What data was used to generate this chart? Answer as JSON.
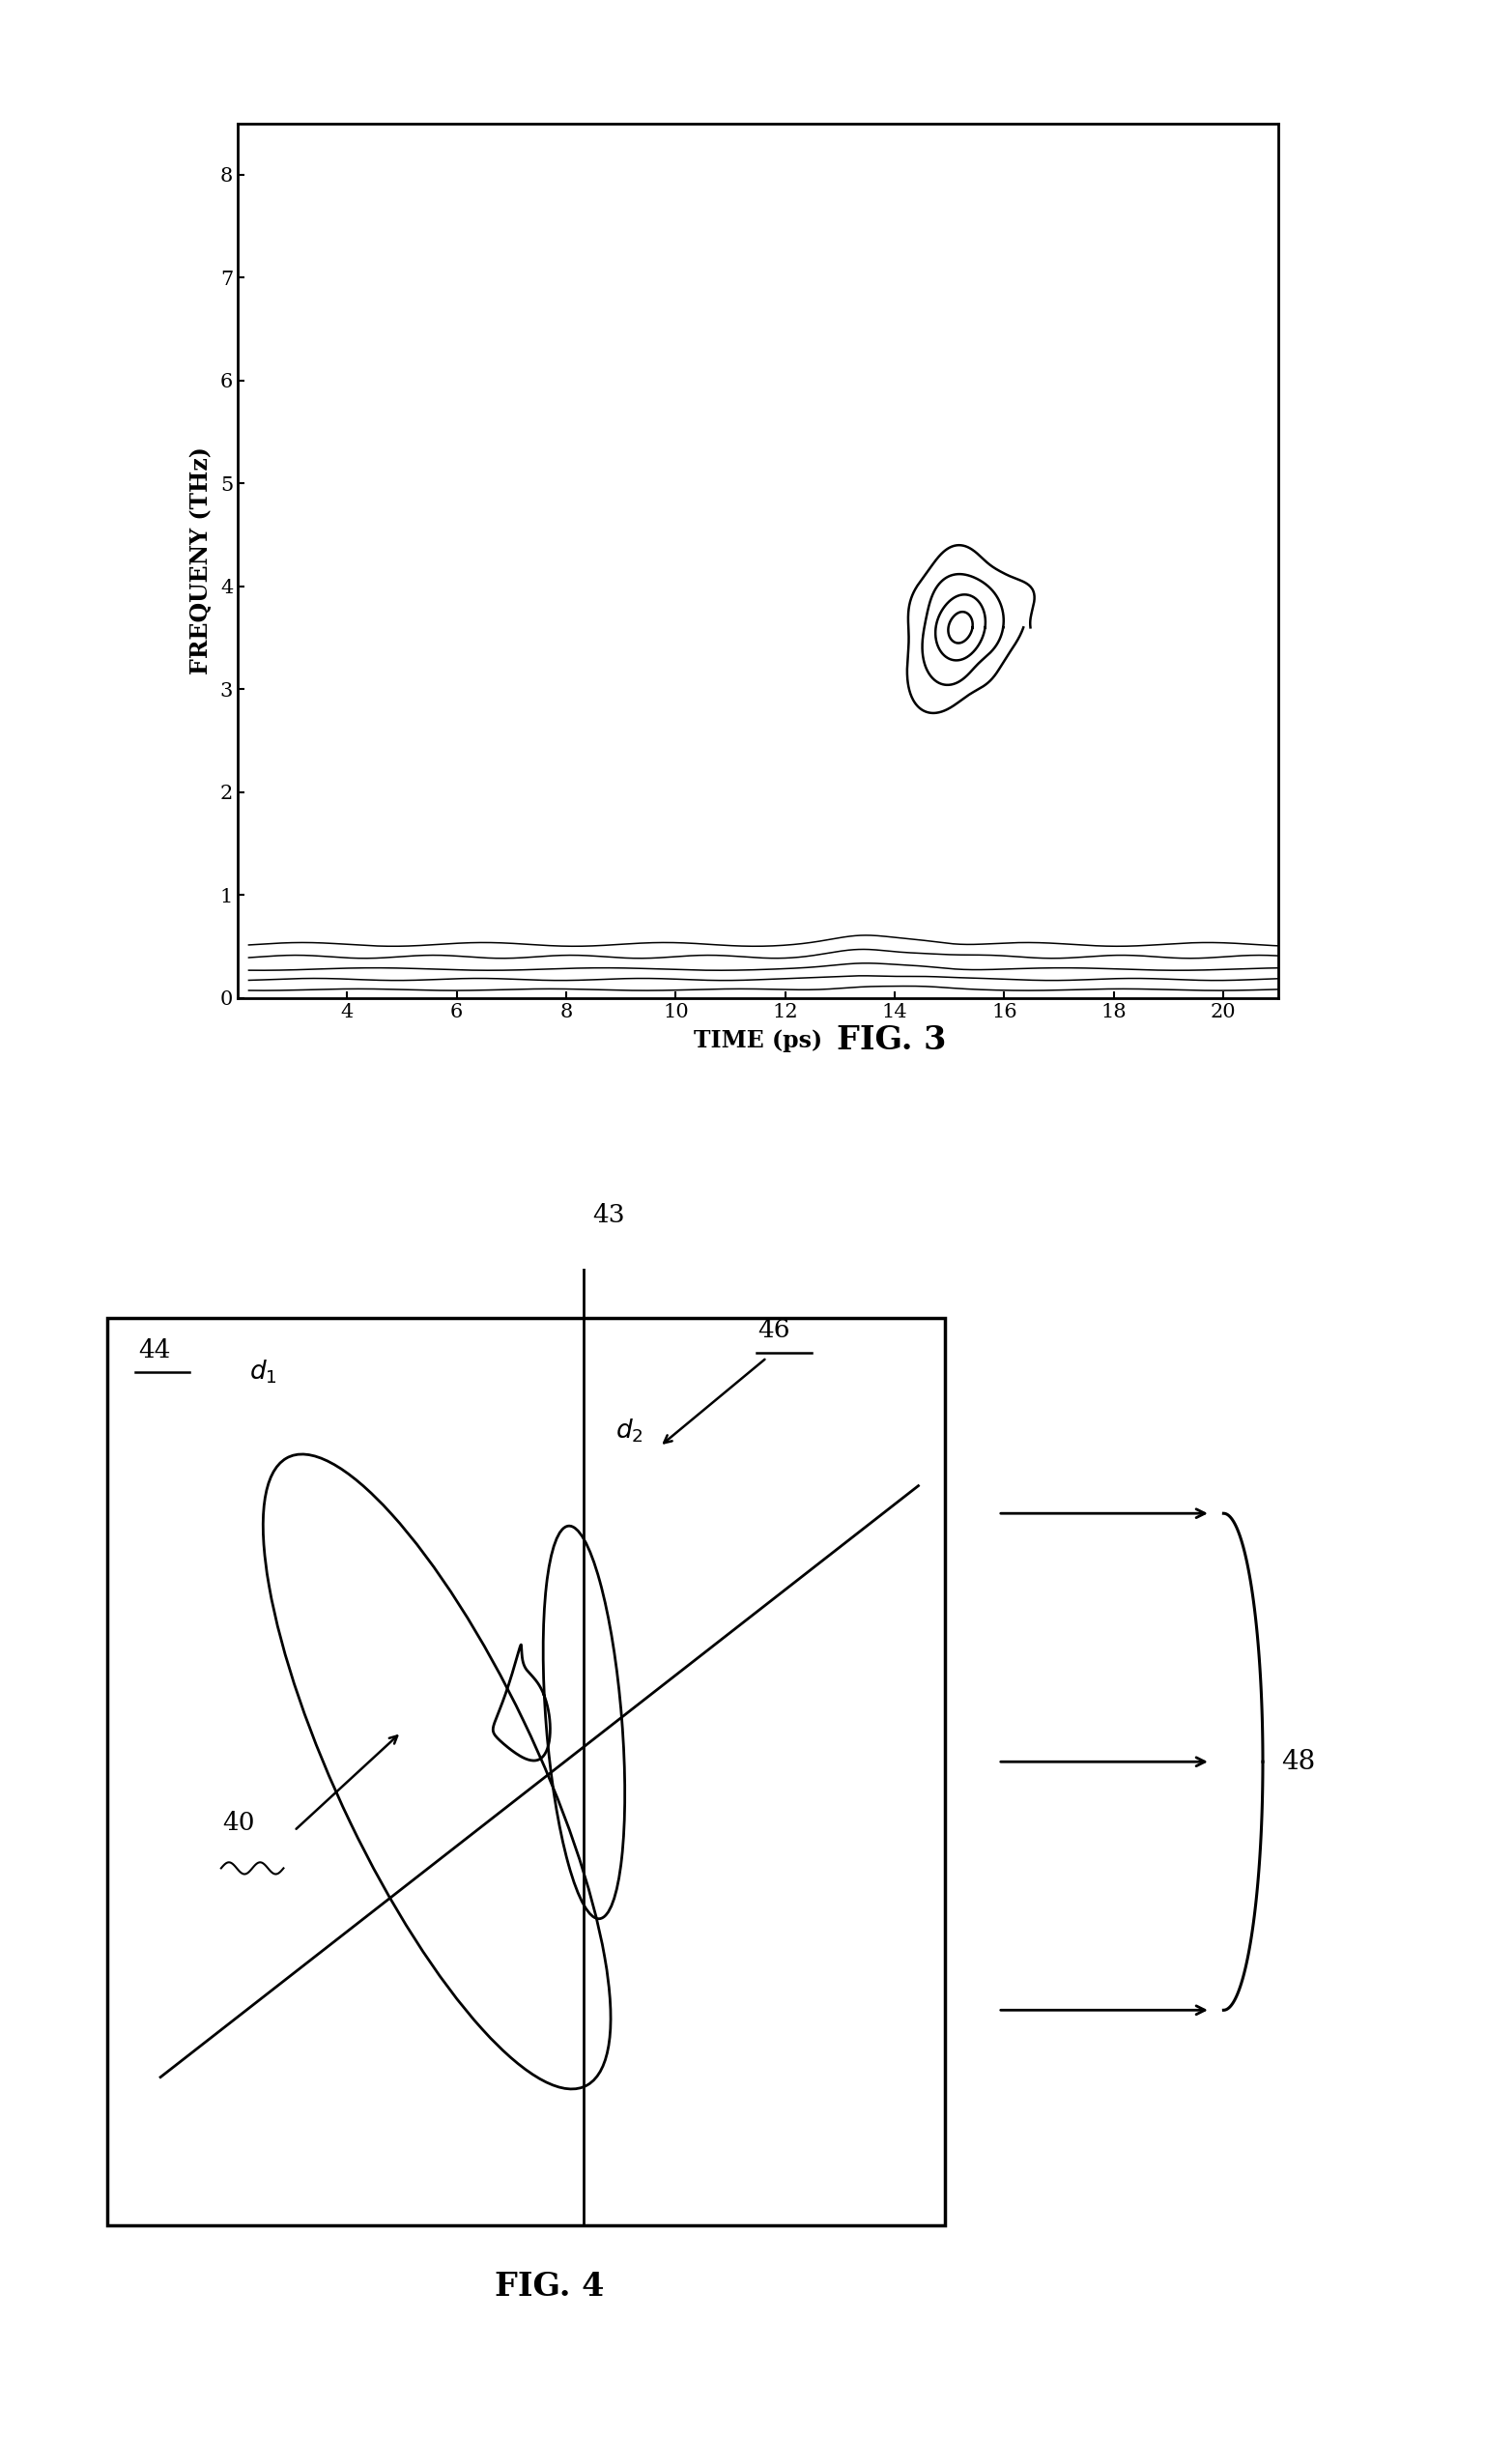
{
  "fig3": {
    "title": "FIG. 3",
    "xlabel": "TIME (ps)",
    "ylabel": "FREQUENY (THz)",
    "xlim": [
      2,
      21
    ],
    "ylim": [
      0,
      8.5
    ],
    "xticks": [
      4,
      6,
      8,
      10,
      12,
      14,
      16,
      18,
      20
    ],
    "yticks": [
      0,
      1,
      2,
      3,
      4,
      5,
      6,
      7,
      8
    ],
    "background": "#ffffff",
    "line_color": "#000000"
  },
  "fig4": {
    "title": "FIG. 4",
    "label_44": "44",
    "label_d1": "d",
    "label_d2": "d",
    "label_43": "43",
    "label_46": "46",
    "label_40": "40",
    "label_48": "48",
    "background": "#ffffff",
    "line_color": "#000000"
  }
}
